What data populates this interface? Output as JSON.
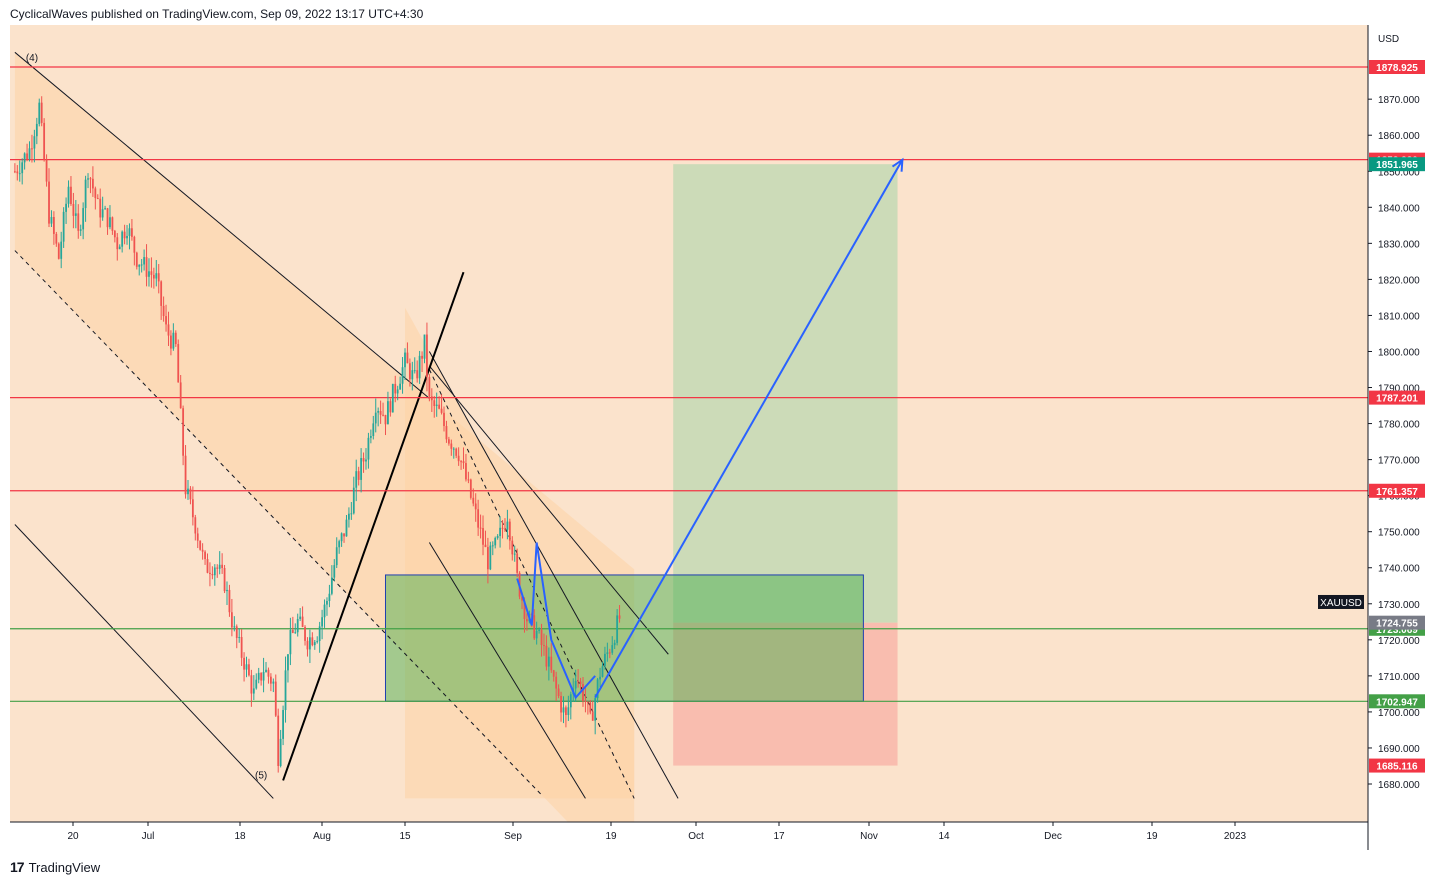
{
  "header": {
    "published": "CyclicalWaves published on TradingView.com, Sep 09, 2022 13:17 UTC+4:30"
  },
  "footer": {
    "logo": "17",
    "brand": "TradingView"
  },
  "colors": {
    "background": "#fbe3cc",
    "channel_fill": "#fdd3a6",
    "resistance": "#f23645",
    "support": "#43a047",
    "wave": "#2962ff",
    "box": "#4caf50",
    "target_zone": "#a5d6a7",
    "stop_zone": "#f8a9a0",
    "candle_up": "#26a69a",
    "candle_down": "#ef5350"
  },
  "chart_data": {
    "type": "candlestick",
    "symbol": "XAUUSD",
    "currency": "USD",
    "ylim": [
      1670,
      1884
    ],
    "y_ticks": [
      "1680.000",
      "1690.000",
      "1700.000",
      "1710.000",
      "1720.000",
      "1730.000",
      "1740.000",
      "1750.000",
      "1760.000",
      "1770.000",
      "1780.000",
      "1790.000",
      "1800.000",
      "1810.000",
      "1820.000",
      "1830.000",
      "1840.000",
      "1850.000",
      "1860.000",
      "1870.000"
    ],
    "x_ticks": [
      "20",
      "Jul",
      "18",
      "Aug",
      "15",
      "Sep",
      "19",
      "Oct",
      "17",
      "Nov",
      "14",
      "Dec",
      "19",
      "2023"
    ],
    "horizontal_levels": [
      {
        "label": "1878.925",
        "value": 1878.925,
        "kind": "resistance"
      },
      {
        "label": "1853.220",
        "value": 1853.22,
        "kind": "resistance"
      },
      {
        "label": "1787.201",
        "value": 1787.201,
        "kind": "resistance"
      },
      {
        "label": "1761.357",
        "value": 1761.357,
        "kind": "resistance"
      },
      {
        "label": "1723.069",
        "value": 1723.069,
        "kind": "support"
      },
      {
        "label": "1702.947",
        "value": 1702.947,
        "kind": "support"
      }
    ],
    "price_badges": [
      {
        "label": "1851.965",
        "value": 1851.965,
        "color": "#089981"
      },
      {
        "label": "1724.755",
        "value": 1724.755,
        "color": "#787b86"
      },
      {
        "label": "1685.116",
        "value": 1685.116,
        "color": "#f23645"
      }
    ],
    "symbol_badge": "XAUUSD",
    "wave_labels": [
      {
        "label": "(4)",
        "price": 1880
      },
      {
        "label": "(5)",
        "price": 1681
      }
    ],
    "price_path": [
      [
        1,
        1850
      ],
      [
        4,
        1856
      ],
      [
        6,
        1868
      ],
      [
        8,
        1838
      ],
      [
        10,
        1826
      ],
      [
        12,
        1846
      ],
      [
        14,
        1832
      ],
      [
        16,
        1851
      ],
      [
        18,
        1840
      ],
      [
        20,
        1837
      ],
      [
        22,
        1830
      ],
      [
        24,
        1835
      ],
      [
        26,
        1826
      ],
      [
        28,
        1823
      ],
      [
        30,
        1820
      ],
      [
        32,
        1806
      ],
      [
        34,
        1801
      ],
      [
        36,
        1762
      ],
      [
        38,
        1752
      ],
      [
        40,
        1740
      ],
      [
        42,
        1741
      ],
      [
        44,
        1736
      ],
      [
        46,
        1722
      ],
      [
        48,
        1714
      ],
      [
        50,
        1705
      ],
      [
        52,
        1712
      ],
      [
        54,
        1708
      ],
      [
        55,
        1688
      ],
      [
        57,
        1718
      ],
      [
        59,
        1725
      ],
      [
        61,
        1720
      ],
      [
        63,
        1722
      ],
      [
        65,
        1731
      ],
      [
        67,
        1744
      ],
      [
        69,
        1752
      ],
      [
        71,
        1764
      ],
      [
        73,
        1772
      ],
      [
        75,
        1786
      ],
      [
        77,
        1782
      ],
      [
        79,
        1790
      ],
      [
        81,
        1797
      ],
      [
        83,
        1792
      ],
      [
        85,
        1802
      ],
      [
        86,
        1786
      ],
      [
        88,
        1783
      ],
      [
        90,
        1776
      ],
      [
        92,
        1772
      ],
      [
        94,
        1762
      ],
      [
        96,
        1752
      ],
      [
        98,
        1742
      ],
      [
        100,
        1747
      ],
      [
        102,
        1755
      ],
      [
        104,
        1737
      ],
      [
        106,
        1726
      ],
      [
        108,
        1722
      ],
      [
        110,
        1715
      ],
      [
        112,
        1706
      ],
      [
        114,
        1698
      ],
      [
        116,
        1711
      ],
      [
        118,
        1703
      ],
      [
        119,
        1697
      ],
      [
        121,
        1711
      ],
      [
        123,
        1718
      ],
      [
        125,
        1726
      ]
    ],
    "target_zone": {
      "x": [
        136,
        182
      ],
      "y": [
        1724.755,
        1851.965
      ]
    },
    "stop_zone": {
      "x": [
        136,
        182
      ],
      "y": [
        1685.116,
        1724.755
      ]
    },
    "consolidation_box": {
      "x": [
        77,
        175
      ],
      "y": [
        1702.947,
        1738.0
      ]
    },
    "projection": [
      [
        120,
        1704
      ],
      [
        183,
        1853.2
      ]
    ],
    "wave_zigzag": [
      [
        104,
        1737
      ],
      [
        107,
        1724
      ],
      [
        108,
        1747
      ],
      [
        111,
        1720
      ],
      [
        116,
        1704
      ],
      [
        120,
        1710
      ]
    ],
    "channels": [
      {
        "kind": "solid",
        "p1": [
          1,
          1883
        ],
        "p2": [
          86,
          1787
        ]
      },
      {
        "kind": "dashed",
        "p1": [
          1,
          1828
        ],
        "p2": [
          109,
          1677
        ]
      },
      {
        "kind": "solid",
        "p1": [
          1,
          1752
        ],
        "p2": [
          54,
          1676
        ]
      },
      {
        "kind": "dashed",
        "p1": [
          86,
          1795
        ],
        "p2": [
          128,
          1676
        ]
      },
      {
        "kind": "solid",
        "p1": [
          86,
          1800
        ],
        "p2": [
          137,
          1676
        ]
      },
      {
        "kind": "solid",
        "p1": [
          86,
          1796
        ],
        "p2": [
          135,
          1716
        ]
      },
      {
        "kind": "solid",
        "p1": [
          86,
          1747
        ],
        "p2": [
          118,
          1676
        ]
      }
    ],
    "trendline": [
      [
        56,
        1681
      ],
      [
        93,
        1822
      ]
    ]
  }
}
